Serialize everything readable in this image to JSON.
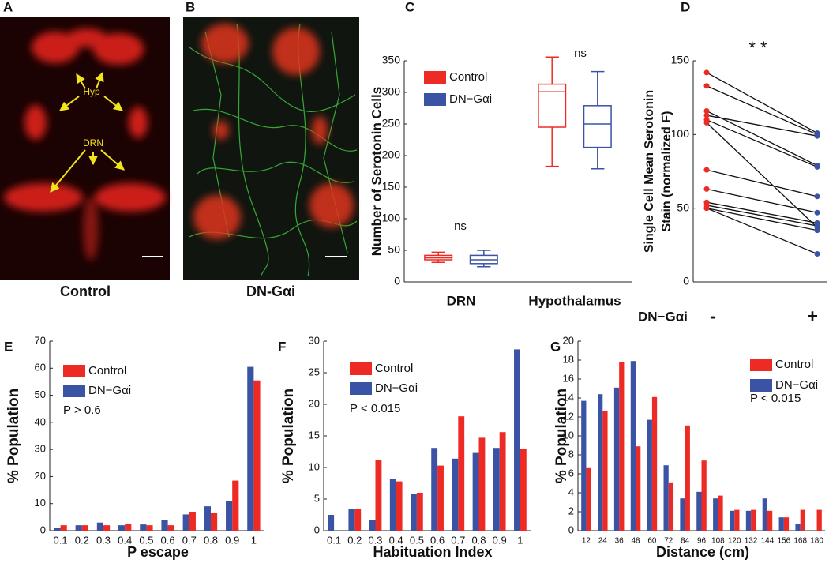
{
  "panel_a": {
    "label": "A",
    "caption": "Control",
    "annotations": [
      "Hyp",
      "DRN"
    ]
  },
  "panel_b": {
    "label": "B",
    "caption": "DN-Gαi"
  },
  "chart_data": [
    {
      "type": "box",
      "panel_label": "C",
      "y_label": "Number of Serotonin Cells",
      "categories": [
        "DRN",
        "Hypothalamus"
      ],
      "series": [
        {
          "name": "Control",
          "color": "#ee2a24",
          "values": [
            {
              "min": 31,
              "q1": 35,
              "median": 38,
              "q3": 42,
              "max": 47
            },
            {
              "min": 183,
              "q1": 245,
              "median": 301,
              "q3": 313,
              "max": 356
            }
          ]
        },
        {
          "name": "DN−Gαi",
          "color": "#3a53a4",
          "values": [
            {
              "min": 24,
              "q1": 29,
              "median": 35,
              "q3": 42,
              "max": 50
            },
            {
              "min": 179,
              "q1": 213,
              "median": 250,
              "q3": 279,
              "max": 333
            }
          ]
        }
      ],
      "annotations": [
        "ns",
        "ns"
      ],
      "ylim": [
        0,
        350
      ],
      "yticks": [
        0,
        50,
        100,
        150,
        200,
        250,
        300,
        350
      ]
    },
    {
      "type": "paired",
      "panel_label": "D",
      "y_label": [
        "Single Cell Mean Serotonin",
        "Stain (normalized F)"
      ],
      "x_label": "DN−Gαi",
      "categories": [
        "-",
        "+"
      ],
      "colors": [
        "#ee2a24",
        "#3a53a4"
      ],
      "pairs": [
        [
          142,
          101
        ],
        [
          133,
          100
        ],
        [
          116,
          79
        ],
        [
          113,
          99
        ],
        [
          110,
          78
        ],
        [
          108,
          37
        ],
        [
          76,
          58
        ],
        [
          63,
          47
        ],
        [
          54,
          40
        ],
        [
          52,
          38
        ],
        [
          50,
          35
        ],
        [
          50,
          19
        ]
      ],
      "annotation": "* *",
      "ylim": [
        0,
        150
      ],
      "yticks": [
        0,
        50,
        100,
        150
      ]
    },
    {
      "type": "bar",
      "panel_label": "E",
      "y_label": "% Population",
      "x_label": "P escape",
      "categories": [
        "0.1",
        "0.2",
        "0.3",
        "0.4",
        "0.5",
        "0.6",
        "0.7",
        "0.8",
        "0.9",
        "1"
      ],
      "series": [
        {
          "name": "Control",
          "color": "#ee2a24",
          "values": [
            2,
            2,
            2,
            2.5,
            2,
            2,
            7,
            6.5,
            18.5,
            55.5
          ]
        },
        {
          "name": "DN−Gαi",
          "color": "#3a53a4",
          "values": [
            1,
            2,
            3,
            2,
            2.3,
            4,
            6,
            9,
            11,
            60.5
          ]
        }
      ],
      "annotation": "P > 0.6",
      "ylim": [
        0,
        70
      ],
      "yticks": [
        0,
        10,
        20,
        30,
        40,
        50,
        60,
        70
      ]
    },
    {
      "type": "bar",
      "panel_label": "F",
      "y_label": "% Population",
      "x_label": "Habituation Index",
      "categories": [
        "0.1",
        "0.2",
        "0.3",
        "0.4",
        "0.5",
        "0.6",
        "0.7",
        "0.8",
        "0.9",
        "1"
      ],
      "series": [
        {
          "name": "Control",
          "color": "#ee2a24",
          "values": [
            0,
            3.4,
            11.2,
            7.8,
            6,
            10.3,
            18.1,
            14.7,
            15.6,
            12.9
          ]
        },
        {
          "name": "DN−Gαi",
          "color": "#3a53a4",
          "values": [
            2.5,
            3.4,
            1.7,
            8.2,
            5.8,
            13.1,
            11.4,
            12.3,
            13.1,
            28.7
          ]
        }
      ],
      "annotation": "P < 0.015",
      "ylim": [
        0,
        30
      ],
      "yticks": [
        0,
        5,
        10,
        15,
        20,
        25,
        30
      ]
    },
    {
      "type": "bar",
      "panel_label": "G",
      "y_label": "% Population",
      "x_label": "Distance (cm)",
      "categories": [
        "12",
        "24",
        "36",
        "48",
        "60",
        "72",
        "84",
        "96",
        "108",
        "120",
        "132",
        "144",
        "156",
        "168",
        "180"
      ],
      "series": [
        {
          "name": "Control",
          "color": "#ee2a24",
          "values": [
            6.6,
            12.6,
            17.8,
            8.9,
            14.1,
            5.1,
            11.1,
            7.4,
            3.7,
            2.2,
            2.2,
            2.1,
            1.4,
            2.2,
            2.2
          ]
        },
        {
          "name": "DN−Gαi",
          "color": "#3a53a4",
          "values": [
            13.7,
            14.4,
            15.1,
            17.9,
            11.7,
            6.9,
            3.4,
            4.1,
            3.4,
            2.1,
            2.1,
            3.4,
            1.4,
            0.7,
            0
          ]
        }
      ],
      "annotation": "P < 0.015",
      "ylim": [
        0,
        20
      ],
      "yticks": [
        0,
        2,
        4,
        6,
        8,
        10,
        12,
        14,
        16,
        18,
        20
      ]
    }
  ]
}
